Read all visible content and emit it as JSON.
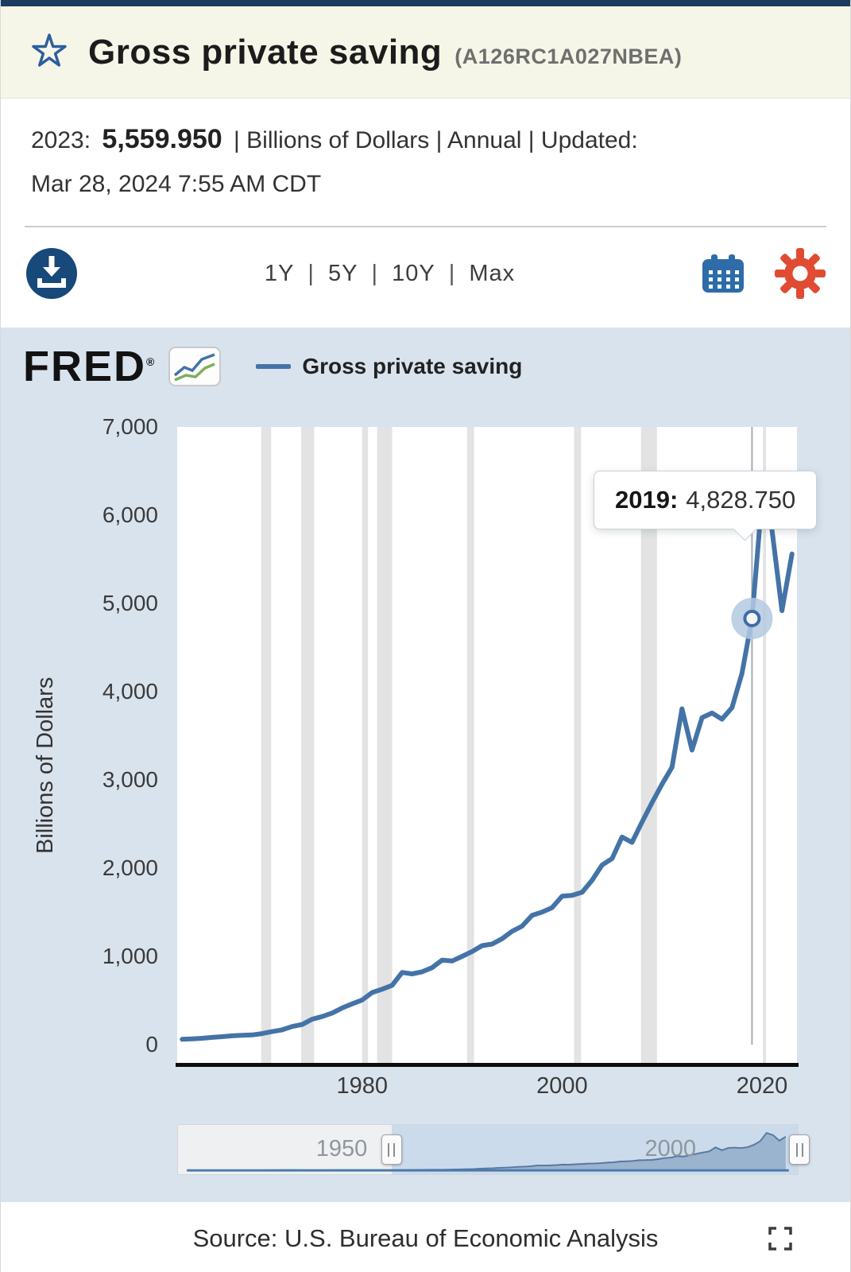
{
  "header": {
    "title": "Gross private saving",
    "series_id": "(A126RC1A027NBEA)"
  },
  "meta": {
    "obs_label": "2023:",
    "obs_value": "5,559.950",
    "details": "| Billions of Dollars | Annual | Updated:",
    "updated": "Mar 28, 2024 7:55 AM CDT"
  },
  "toolbar": {
    "ranges": [
      "1Y",
      "5Y",
      "10Y",
      "Max"
    ],
    "separator": "|",
    "download_icon": "download-icon",
    "calendar_icon": "calendar-icon",
    "settings_icon": "gear-icon"
  },
  "chart": {
    "brand": "FRED",
    "brand_reg": "®",
    "legend_label": "Gross private saving",
    "y_axis_title": "Billions of Dollars",
    "tooltip": {
      "label": "2019:",
      "value": "4,828.750"
    }
  },
  "chart_data": {
    "type": "line",
    "title": "Gross private saving",
    "series_name": "Gross private saving",
    "ylabel": "Billions of Dollars",
    "ylim": [
      0,
      7000
    ],
    "yticks": [
      0,
      1000,
      2000,
      3000,
      4000,
      5000,
      6000,
      7000
    ],
    "xticks": [
      1980,
      2000,
      2020
    ],
    "x_visible_range": [
      1961.5,
      2023.5
    ],
    "grid": false,
    "legend_position": "top-left",
    "line_color": "#4473a7",
    "recession_color": "#e3e3e3",
    "x": [
      1962,
      1963,
      1964,
      1965,
      1966,
      1967,
      1968,
      1969,
      1970,
      1971,
      1972,
      1973,
      1974,
      1975,
      1976,
      1977,
      1978,
      1979,
      1980,
      1981,
      1982,
      1983,
      1984,
      1985,
      1986,
      1987,
      1988,
      1989,
      1990,
      1991,
      1992,
      1993,
      1994,
      1995,
      1996,
      1997,
      1998,
      1999,
      2000,
      2001,
      2002,
      2003,
      2004,
      2005,
      2006,
      2007,
      2008,
      2009,
      2010,
      2011,
      2012,
      2013,
      2014,
      2015,
      2016,
      2017,
      2018,
      2019,
      2020,
      2021,
      2022,
      2023
    ],
    "values": [
      60,
      65,
      72,
      82,
      90,
      100,
      105,
      110,
      125,
      148,
      168,
      205,
      228,
      288,
      318,
      358,
      415,
      462,
      505,
      590,
      628,
      672,
      818,
      802,
      825,
      872,
      958,
      948,
      1000,
      1055,
      1122,
      1140,
      1200,
      1285,
      1342,
      1465,
      1502,
      1552,
      1682,
      1692,
      1726,
      1862,
      2035,
      2108,
      2352,
      2292,
      2522,
      2742,
      2952,
      3142,
      3805,
      3338,
      3705,
      3758,
      3688,
      3818,
      4208,
      4828.75,
      6182,
      5838,
      4918,
      5559.95
    ],
    "recessions": [
      [
        1969.9,
        1970.9
      ],
      [
        1973.9,
        1975.2
      ],
      [
        1980.0,
        1980.6
      ],
      [
        1981.5,
        1983.0
      ],
      [
        1990.5,
        1991.2
      ],
      [
        2001.2,
        2001.9
      ],
      [
        2007.9,
        2009.5
      ],
      [
        2020.1,
        2020.4
      ]
    ],
    "highlight_point": {
      "x": 2019,
      "y": 4828.75
    },
    "overview_series": {
      "x": [
        1929,
        1933,
        1939,
        1945,
        1950,
        1955,
        1960
      ],
      "values": [
        10,
        3,
        13,
        45,
        44,
        58,
        57
      ]
    }
  },
  "slider": {
    "x_range": [
      1929,
      2023.5
    ],
    "window": [
      1961.5,
      2023.5
    ],
    "labels": [
      {
        "text": "1950",
        "year": 1950
      },
      {
        "text": "2000",
        "year": 2000
      }
    ]
  },
  "footer": {
    "source": "Source: U.S. Bureau of Economic Analysis"
  }
}
